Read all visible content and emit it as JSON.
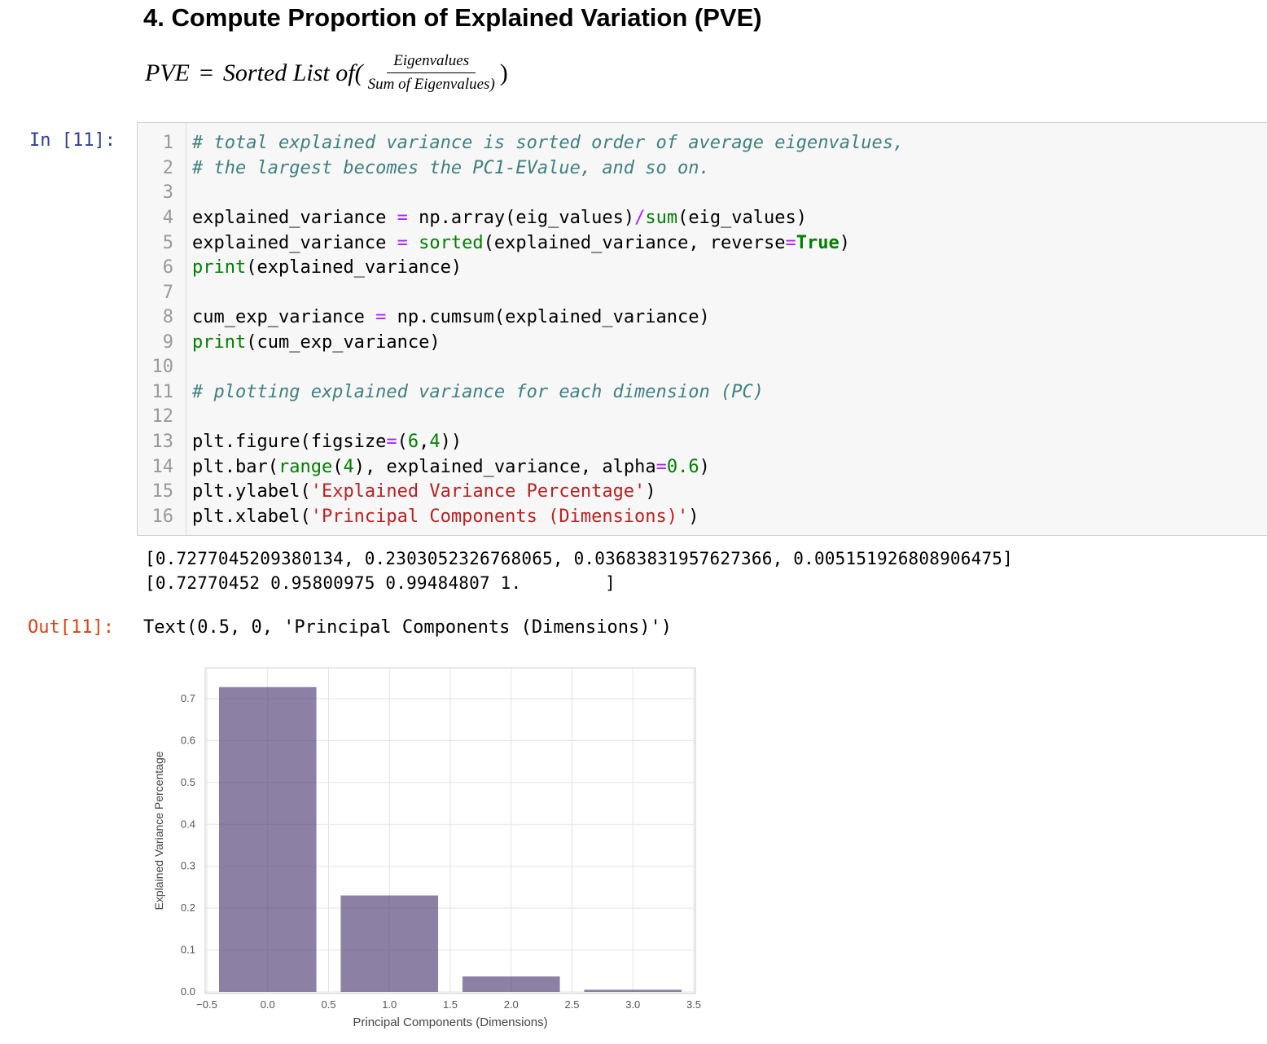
{
  "markdown": {
    "heading": "4. Compute Proportion of Explained Variation (PVE)",
    "formula": {
      "lhs": "PVE",
      "eq": "=",
      "prefix": "Sorted List of(",
      "numerator": "Eigenvalues",
      "denominator": "Sum of Eigenvalues)",
      "suffix": ")"
    }
  },
  "cell": {
    "in_prompt": "In [11]:",
    "out_prompt": "Out[11]:",
    "lines": [
      {
        "n": "1"
      },
      {
        "n": "2"
      },
      {
        "n": "3"
      },
      {
        "n": "4"
      },
      {
        "n": "5"
      },
      {
        "n": "6"
      },
      {
        "n": "7"
      },
      {
        "n": "8"
      },
      {
        "n": "9"
      },
      {
        "n": "10"
      },
      {
        "n": "11"
      },
      {
        "n": "12"
      },
      {
        "n": "13"
      },
      {
        "n": "14"
      },
      {
        "n": "15"
      },
      {
        "n": "16"
      }
    ],
    "code": {
      "l1": "# total explained variance is sorted order of average eigenvalues,",
      "l2": "# the largest becomes the PC1-EValue, and so on.",
      "l4a": "explained_variance ",
      "l4b": "=",
      "l4c": " np.array(eig_values)",
      "l4d": "/",
      "l4e": "sum",
      "l4f": "(eig_values)",
      "l5a": "explained_variance ",
      "l5b": "=",
      "l5c": " ",
      "l5d": "sorted",
      "l5e": "(explained_variance, reverse",
      "l5f": "=",
      "l5g": "True",
      "l5h": ")",
      "l6a": "print",
      "l6b": "(explained_variance)",
      "l8a": "cum_exp_variance ",
      "l8b": "=",
      "l8c": " np.cumsum(explained_variance)",
      "l9a": "print",
      "l9b": "(cum_exp_variance)",
      "l11": "# plotting explained variance for each dimension (PC)",
      "l13a": "plt.figure(figsize",
      "l13b": "=",
      "l13c": "(",
      "l13d": "6",
      "l13e": ",",
      "l13f": "4",
      "l13g": "))",
      "l14a": "plt.bar(",
      "l14b": "range",
      "l14c": "(",
      "l14d": "4",
      "l14e": "), explained_variance, alpha",
      "l14f": "=",
      "l14g": "0.6",
      "l14h": ")",
      "l15a": "plt.ylabel(",
      "l15b": "'Explained Variance Percentage'",
      "l15c": ")",
      "l16a": "plt.xlabel(",
      "l16b": "'Principal Components (Dimensions)'",
      "l16c": ")"
    },
    "stdout": [
      "[0.7277045209380134, 0.2303052326768065, 0.03683831957627366, 0.005151926808906475]",
      "[0.72770452 0.95800975 0.99484807 1.        ]"
    ],
    "out_text": "Text(0.5, 0, 'Principal Components (Dimensions)')"
  },
  "chart_data": {
    "type": "bar",
    "x": [
      0,
      1,
      2,
      3
    ],
    "values": [
      0.7277045209380134,
      0.2303052326768065,
      0.03683831957627366,
      0.005151926808906475
    ],
    "bar_width": 0.8,
    "bar_color": "#3f2d68",
    "alpha": 0.6,
    "xlim": [
      -0.5,
      3.5
    ],
    "ylim": [
      0,
      0.7
    ],
    "xticks": [
      "−0.5",
      "0.0",
      "0.5",
      "1.0",
      "1.5",
      "2.0",
      "2.5",
      "3.0",
      "3.5"
    ],
    "yticks": [
      "0.0",
      "0.1",
      "0.2",
      "0.3",
      "0.4",
      "0.5",
      "0.6",
      "0.7"
    ],
    "xlabel": "Principal Components (Dimensions)",
    "ylabel": "Explained Variance Percentage",
    "grid": true
  }
}
